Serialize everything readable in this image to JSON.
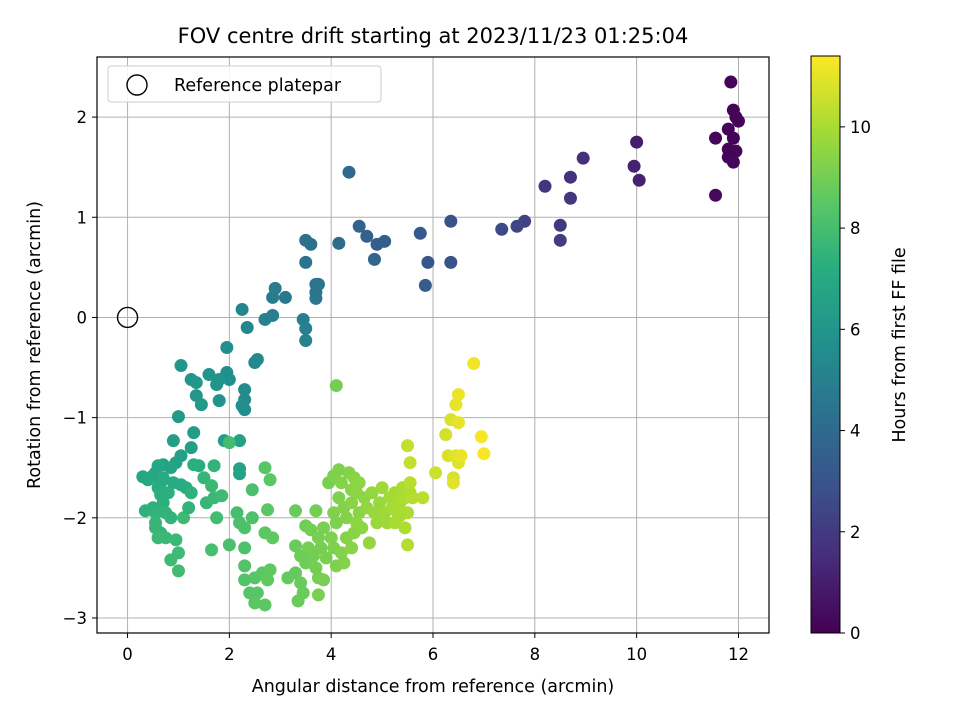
{
  "chart_data": {
    "type": "scatter",
    "title": "FOV centre drift starting at 2023/11/23 01:25:04",
    "xlabel": "Angular distance from reference (arcmin)",
    "ylabel": "Rotation from reference (arcmin)",
    "xlim": [
      -0.6,
      12.6
    ],
    "ylim": [
      -3.15,
      2.6
    ],
    "xticks": [
      0,
      2,
      4,
      6,
      8,
      10,
      12
    ],
    "yticks": [
      -3,
      -2,
      -1,
      0,
      1,
      2
    ],
    "grid": true,
    "legend": {
      "placement": "top-left",
      "entries": [
        "Reference platepar"
      ]
    },
    "reference_point": {
      "x": 0,
      "y": 0
    },
    "colorbar": {
      "label": "Hours from first FF file",
      "colormap": "viridis",
      "range": [
        0,
        11.4
      ],
      "ticks": [
        0,
        2,
        4,
        6,
        8,
        10
      ]
    },
    "series": [
      {
        "points": [
          [
            11.85,
            2.35,
            0.1
          ],
          [
            11.9,
            2.07,
            0.1
          ],
          [
            11.95,
            2.0,
            0.1
          ],
          [
            12.0,
            1.96,
            0.1
          ],
          [
            11.8,
            1.88,
            0.1
          ],
          [
            11.55,
            1.79,
            0.2
          ],
          [
            11.9,
            1.79,
            0.1
          ],
          [
            11.8,
            1.68,
            0.1
          ],
          [
            11.95,
            1.66,
            0.2
          ],
          [
            11.8,
            1.6,
            0.1
          ],
          [
            11.9,
            1.55,
            0.2
          ],
          [
            11.55,
            1.22,
            0.3
          ],
          [
            10.0,
            1.75,
            1.0
          ],
          [
            9.95,
            1.51,
            1.1
          ],
          [
            10.05,
            1.37,
            1.1
          ],
          [
            8.95,
            1.59,
            1.6
          ],
          [
            8.7,
            1.4,
            1.7
          ],
          [
            8.2,
            1.31,
            1.8
          ],
          [
            8.7,
            1.19,
            1.9
          ],
          [
            8.5,
            0.92,
            2.0
          ],
          [
            8.5,
            0.77,
            2.1
          ],
          [
            7.8,
            0.96,
            2.3
          ],
          [
            7.65,
            0.91,
            2.4
          ],
          [
            7.35,
            0.88,
            2.6
          ],
          [
            6.35,
            0.96,
            2.9
          ],
          [
            6.35,
            0.55,
            3.0
          ],
          [
            5.9,
            0.55,
            3.1
          ],
          [
            5.75,
            0.84,
            3.2
          ],
          [
            5.85,
            0.32,
            3.3
          ],
          [
            5.05,
            0.76,
            3.5
          ],
          [
            4.9,
            0.73,
            3.5
          ],
          [
            4.7,
            0.81,
            3.6
          ],
          [
            4.55,
            0.91,
            3.7
          ],
          [
            4.85,
            0.58,
            3.8
          ],
          [
            4.35,
            1.45,
            4.0
          ],
          [
            4.15,
            0.74,
            4.1
          ],
          [
            3.5,
            0.77,
            4.3
          ],
          [
            3.6,
            0.73,
            4.3
          ],
          [
            3.5,
            0.55,
            4.4
          ],
          [
            3.7,
            0.33,
            4.4
          ],
          [
            3.75,
            0.33,
            4.5
          ],
          [
            3.7,
            0.25,
            4.5
          ],
          [
            3.7,
            0.19,
            4.6
          ],
          [
            3.1,
            0.2,
            4.7
          ],
          [
            2.9,
            0.29,
            4.8
          ],
          [
            2.85,
            0.2,
            4.8
          ],
          [
            2.85,
            0.02,
            4.9
          ],
          [
            2.7,
            -0.02,
            5.0
          ],
          [
            3.45,
            -0.02,
            4.9
          ],
          [
            3.5,
            -0.11,
            5.0
          ],
          [
            3.5,
            -0.23,
            5.1
          ],
          [
            2.25,
            0.08,
            5.2
          ],
          [
            2.35,
            -0.1,
            5.3
          ],
          [
            2.55,
            -0.42,
            5.4
          ],
          [
            2.5,
            -0.45,
            5.4
          ],
          [
            2.3,
            -0.72,
            5.5
          ],
          [
            2.3,
            -0.82,
            5.5
          ],
          [
            2.25,
            -0.88,
            5.6
          ],
          [
            2.3,
            -0.92,
            5.6
          ],
          [
            1.95,
            -0.3,
            5.6
          ],
          [
            1.95,
            -0.55,
            5.7
          ],
          [
            2.0,
            -0.62,
            5.7
          ],
          [
            1.8,
            -0.62,
            5.8
          ],
          [
            1.6,
            -0.57,
            5.8
          ],
          [
            1.75,
            -0.67,
            5.9
          ],
          [
            1.8,
            -0.83,
            5.9
          ],
          [
            1.05,
            -0.48,
            6.0
          ],
          [
            1.25,
            -0.62,
            6.0
          ],
          [
            1.35,
            -0.65,
            6.1
          ],
          [
            1.35,
            -0.78,
            6.1
          ],
          [
            1.45,
            -0.87,
            6.2
          ],
          [
            1.0,
            -0.99,
            6.2
          ],
          [
            1.3,
            -1.15,
            6.3
          ],
          [
            1.9,
            -1.23,
            6.3
          ],
          [
            0.9,
            -1.23,
            6.4
          ],
          [
            1.25,
            -1.3,
            6.4
          ],
          [
            1.05,
            -1.38,
            6.5
          ],
          [
            0.95,
            -1.45,
            6.5
          ],
          [
            2.2,
            -1.23,
            6.6
          ],
          [
            2.2,
            -1.51,
            6.6
          ],
          [
            2.2,
            -1.56,
            6.7
          ],
          [
            0.7,
            -1.47,
            6.6
          ],
          [
            0.85,
            -1.5,
            6.7
          ],
          [
            0.6,
            -1.48,
            6.8
          ],
          [
            0.55,
            -1.55,
            6.8
          ],
          [
            0.5,
            -1.58,
            6.9
          ],
          [
            0.3,
            -1.59,
            6.9
          ],
          [
            0.4,
            -1.62,
            7.0
          ],
          [
            0.65,
            -1.65,
            7.0
          ],
          [
            0.7,
            -1.6,
            7.1
          ],
          [
            0.9,
            -1.65,
            7.1
          ],
          [
            1.05,
            -1.67,
            7.1
          ],
          [
            1.15,
            -1.7,
            7.2
          ],
          [
            0.6,
            -1.7,
            7.2
          ],
          [
            0.8,
            -1.75,
            7.3
          ],
          [
            0.65,
            -1.77,
            7.3
          ],
          [
            0.7,
            -1.85,
            7.3
          ],
          [
            0.5,
            -1.9,
            7.4
          ],
          [
            0.35,
            -1.93,
            7.4
          ],
          [
            0.55,
            -1.95,
            7.5
          ],
          [
            0.75,
            -1.95,
            7.5
          ],
          [
            0.85,
            -2.0,
            7.5
          ],
          [
            0.55,
            -2.05,
            7.6
          ],
          [
            0.55,
            -2.1,
            7.6
          ],
          [
            0.65,
            -2.15,
            7.6
          ],
          [
            0.6,
            -2.2,
            7.7
          ],
          [
            0.75,
            -2.2,
            7.7
          ],
          [
            0.95,
            -2.22,
            7.7
          ],
          [
            1.0,
            -2.35,
            7.8
          ],
          [
            1.1,
            -2.0,
            7.8
          ],
          [
            0.85,
            -2.42,
            7.8
          ],
          [
            1.0,
            -2.53,
            7.9
          ],
          [
            1.4,
            -1.48,
            7.2
          ],
          [
            1.3,
            -1.47,
            7.3
          ],
          [
            1.25,
            -1.75,
            7.4
          ],
          [
            1.2,
            -1.9,
            7.5
          ],
          [
            1.5,
            -1.6,
            7.6
          ],
          [
            1.55,
            -1.85,
            7.6
          ],
          [
            1.7,
            -1.48,
            7.5
          ],
          [
            1.65,
            -1.68,
            7.7
          ],
          [
            1.7,
            -1.8,
            7.7
          ],
          [
            1.85,
            -1.78,
            7.8
          ],
          [
            1.75,
            -2.0,
            7.9
          ],
          [
            1.65,
            -2.32,
            8.0
          ],
          [
            2.0,
            -1.25,
            7.9
          ],
          [
            2.0,
            -2.27,
            8.1
          ],
          [
            2.15,
            -1.95,
            8.0
          ],
          [
            2.2,
            -2.05,
            8.1
          ],
          [
            2.3,
            -2.1,
            8.2
          ],
          [
            2.3,
            -2.3,
            8.2
          ],
          [
            2.45,
            -1.72,
            8.1
          ],
          [
            2.45,
            -2.0,
            8.2
          ],
          [
            2.3,
            -2.48,
            8.3
          ],
          [
            2.3,
            -2.62,
            8.3
          ],
          [
            2.4,
            -2.75,
            8.4
          ],
          [
            2.5,
            -2.6,
            8.4
          ],
          [
            2.55,
            -2.75,
            8.4
          ],
          [
            2.5,
            -2.85,
            8.5
          ],
          [
            2.7,
            -2.87,
            8.5
          ],
          [
            2.65,
            -2.55,
            8.5
          ],
          [
            2.75,
            -2.62,
            8.6
          ],
          [
            2.8,
            -2.52,
            8.6
          ],
          [
            2.7,
            -2.15,
            8.5
          ],
          [
            2.85,
            -2.2,
            8.6
          ],
          [
            2.75,
            -1.92,
            8.5
          ],
          [
            2.7,
            -1.5,
            8.4
          ],
          [
            2.8,
            -1.62,
            8.5
          ],
          [
            3.15,
            -2.6,
            8.7
          ],
          [
            3.3,
            -2.55,
            8.7
          ],
          [
            3.35,
            -2.83,
            8.8
          ],
          [
            3.45,
            -2.75,
            8.8
          ],
          [
            3.4,
            -2.65,
            8.8
          ],
          [
            3.3,
            -2.28,
            8.8
          ],
          [
            3.4,
            -2.38,
            8.9
          ],
          [
            3.5,
            -2.45,
            8.9
          ],
          [
            3.55,
            -2.3,
            9.0
          ],
          [
            3.65,
            -2.38,
            9.0
          ],
          [
            3.7,
            -2.5,
            9.0
          ],
          [
            3.75,
            -2.6,
            9.0
          ],
          [
            3.8,
            -2.3,
            9.0
          ],
          [
            3.9,
            -2.4,
            9.1
          ],
          [
            3.85,
            -2.62,
            9.1
          ],
          [
            3.75,
            -2.77,
            9.1
          ],
          [
            3.3,
            -1.93,
            8.8
          ],
          [
            3.5,
            -2.08,
            8.9
          ],
          [
            3.6,
            -2.12,
            9.0
          ],
          [
            3.7,
            -1.93,
            9.0
          ],
          [
            3.75,
            -2.2,
            9.1
          ],
          [
            3.85,
            -2.1,
            9.1
          ],
          [
            4.0,
            -2.2,
            9.2
          ],
          [
            4.05,
            -2.3,
            9.2
          ],
          [
            4.1,
            -2.48,
            9.2
          ],
          [
            4.1,
            -2.05,
            9.2
          ],
          [
            4.2,
            -2.35,
            9.3
          ],
          [
            4.25,
            -2.45,
            9.3
          ],
          [
            4.3,
            -2.2,
            9.3
          ],
          [
            4.4,
            -2.3,
            9.4
          ],
          [
            4.45,
            -2.15,
            9.4
          ],
          [
            4.05,
            -1.95,
            9.2
          ],
          [
            4.15,
            -1.8,
            9.2
          ],
          [
            4.25,
            -1.9,
            9.3
          ],
          [
            4.3,
            -2.0,
            9.3
          ],
          [
            4.4,
            -1.85,
            9.4
          ],
          [
            4.55,
            -1.95,
            9.4
          ],
          [
            4.5,
            -2.05,
            9.5
          ],
          [
            4.6,
            -2.1,
            9.5
          ],
          [
            4.75,
            -2.25,
            9.6
          ],
          [
            3.95,
            -1.65,
            9.1
          ],
          [
            4.05,
            -1.58,
            9.2
          ],
          [
            4.15,
            -1.52,
            9.2
          ],
          [
            4.2,
            -1.65,
            9.3
          ],
          [
            4.35,
            -1.55,
            9.3
          ],
          [
            4.4,
            -1.72,
            9.4
          ],
          [
            4.45,
            -1.6,
            9.4
          ],
          [
            4.5,
            -1.75,
            9.5
          ],
          [
            4.55,
            -1.65,
            9.5
          ],
          [
            4.65,
            -1.8,
            9.5
          ],
          [
            4.7,
            -1.9,
            9.6
          ],
          [
            4.8,
            -1.75,
            9.6
          ],
          [
            4.85,
            -1.95,
            9.7
          ],
          [
            4.9,
            -2.05,
            9.7
          ],
          [
            4.95,
            -1.85,
            9.7
          ],
          [
            5.0,
            -1.7,
            9.8
          ],
          [
            5.05,
            -1.95,
            9.8
          ],
          [
            5.1,
            -2.05,
            9.8
          ],
          [
            5.15,
            -1.8,
            9.9
          ],
          [
            5.2,
            -1.9,
            9.9
          ],
          [
            5.25,
            -1.75,
            9.9
          ],
          [
            5.3,
            -1.95,
            10.0
          ],
          [
            5.35,
            -1.85,
            10.0
          ],
          [
            5.4,
            -1.7,
            10.0
          ],
          [
            5.45,
            -1.8,
            10.1
          ],
          [
            5.5,
            -1.95,
            10.1
          ],
          [
            5.55,
            -1.75,
            10.1
          ],
          [
            5.6,
            -1.8,
            10.2
          ],
          [
            5.25,
            -2.05,
            10.0
          ],
          [
            5.35,
            -1.98,
            10.0
          ],
          [
            5.45,
            -2.1,
            10.1
          ],
          [
            5.5,
            -2.27,
            10.2
          ],
          [
            4.1,
            -0.68,
            9.0
          ],
          [
            5.8,
            -1.8,
            10.3
          ],
          [
            5.5,
            -1.28,
            10.4
          ],
          [
            5.55,
            -1.45,
            10.4
          ],
          [
            5.55,
            -1.65,
            10.3
          ],
          [
            6.05,
            -1.55,
            10.6
          ],
          [
            6.25,
            -1.17,
            10.7
          ],
          [
            6.3,
            -1.38,
            10.8
          ],
          [
            6.35,
            -1.02,
            10.8
          ],
          [
            6.4,
            -1.6,
            10.8
          ],
          [
            6.4,
            -1.65,
            10.9
          ],
          [
            6.45,
            -1.38,
            10.9
          ],
          [
            6.5,
            -1.45,
            10.9
          ],
          [
            6.5,
            -1.05,
            11.0
          ],
          [
            6.45,
            -0.87,
            11.0
          ],
          [
            6.5,
            -0.77,
            11.1
          ],
          [
            6.55,
            -1.38,
            11.1
          ],
          [
            6.8,
            -0.46,
            11.2
          ],
          [
            6.95,
            -1.19,
            11.3
          ],
          [
            7.0,
            -1.36,
            11.3
          ]
        ]
      }
    ]
  }
}
